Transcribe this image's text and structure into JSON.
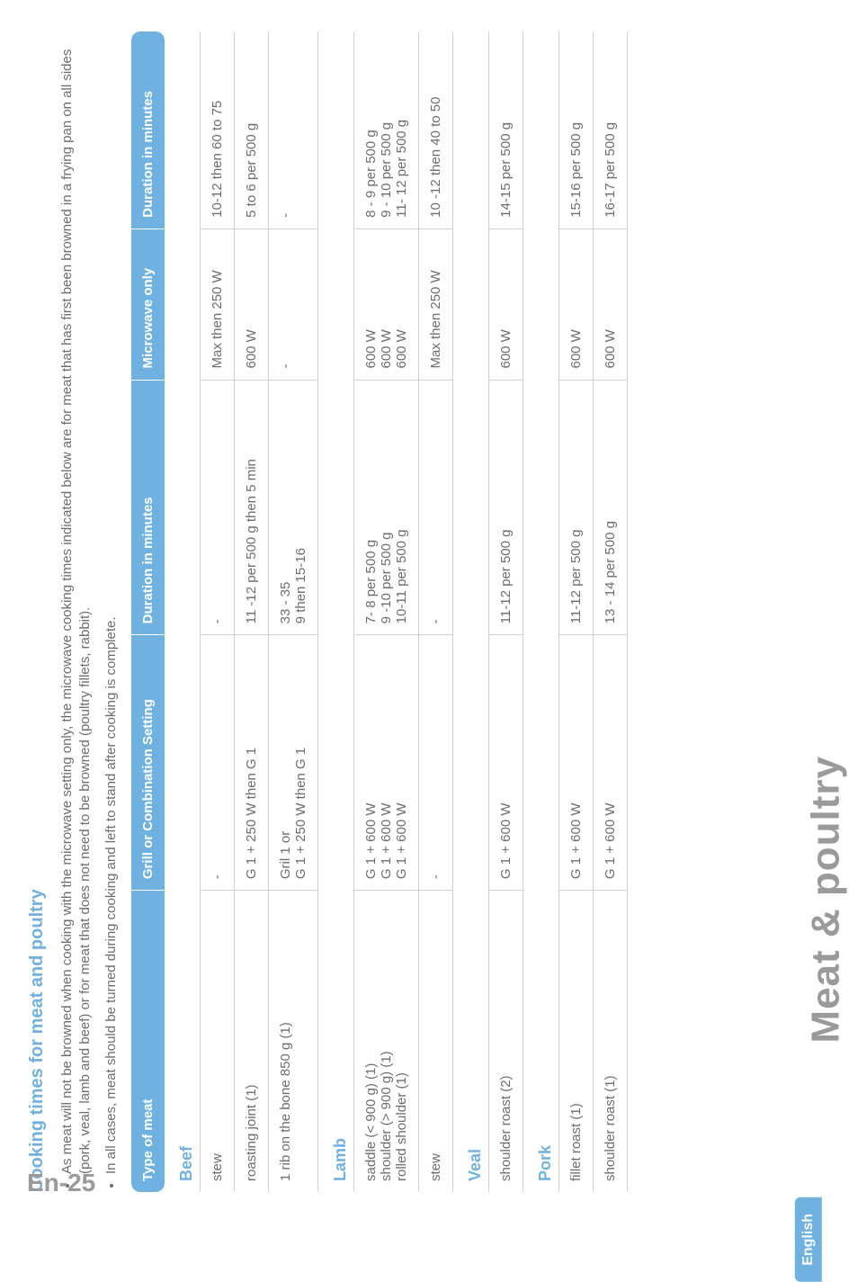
{
  "page_title": "Meat & poultry",
  "page_number": "En-25",
  "lang_tab": "English",
  "section_heading": "Cooking times for meat and poultry",
  "intro_bullets": [
    "As meat will not be browned when cooking with the microwave setting only, the microwave cooking times indicated below are for meat that has first been browned in a frying pan on all sides (pork, veal, lamb and beef) or for meat that does not need to be browned (poultry fillets, rabbit).",
    "In all cases, meat should be turned during cooking and left to stand after cooking is complete."
  ],
  "table": {
    "headers": [
      "Type of meat",
      "Grill or Combination Setting",
      "Duration in minutes",
      "Microwave only",
      "Duration in minutes"
    ],
    "groups": [
      {
        "category": "Beef",
        "rows": [
          {
            "c1": "stew",
            "c2": "-",
            "c3": "-",
            "c4": "Max  then 250 W",
            "c5": "10-12 then 60 to 75"
          },
          {
            "c1": "roasting joint (1)",
            "c2": "G 1 + 250 W then G 1",
            "c3": "11 -12 per 500 g then 5 min",
            "c4": "600 W",
            "c5": "5 to 6 per 500 g"
          },
          {
            "c1": "1 rib on the bone 850 g (1)",
            "c2": "Gril 1 or\nG 1 + 250 W then G 1",
            "c3": "33 - 35\n9 then 15-16",
            "c4": "-",
            "c5": "-"
          }
        ]
      },
      {
        "category": "Lamb",
        "rows": [
          {
            "c1": "saddle (< 900 g) (1)\nshoulder (> 900 g) (1)\nrolled shoulder (1)",
            "c2": "G 1 + 600 W\nG 1 + 600 W\nG 1 + 600 W",
            "c3": "7- 8 per 500 g\n9 -10 per 500 g\n10-11 per 500 g",
            "c4": "600 W\n600 W\n600 W",
            "c5": "8 - 9 per 500 g\n9 - 10 per 500 g\n11- 12 per 500 g"
          },
          {
            "c1": "stew",
            "c2": "-",
            "c3": "-",
            "c4": "Max then 250 W",
            "c5": "10 -12 then 40 to 50"
          }
        ]
      },
      {
        "category": "Veal",
        "rows": [
          {
            "c1": "shoulder roast (2)",
            "c2": "G 1 + 600 W",
            "c3": "11-12 per 500 g",
            "c4": "600 W",
            "c5": "14-15 per 500 g"
          }
        ]
      },
      {
        "category": "Pork",
        "rows": [
          {
            "c1": "fillet roast (1)",
            "c2": "G 1 + 600 W",
            "c3": "11-12 per 500 g",
            "c4": "600 W",
            "c5": "15-16 per 500 g"
          },
          {
            "c1": "shoulder roast (1)",
            "c2": "G 1 + 600 W",
            "c3": "13 - 14 per 500 g",
            "c4": "600 W",
            "c5": "16-17 per 500 g"
          }
        ]
      }
    ]
  }
}
